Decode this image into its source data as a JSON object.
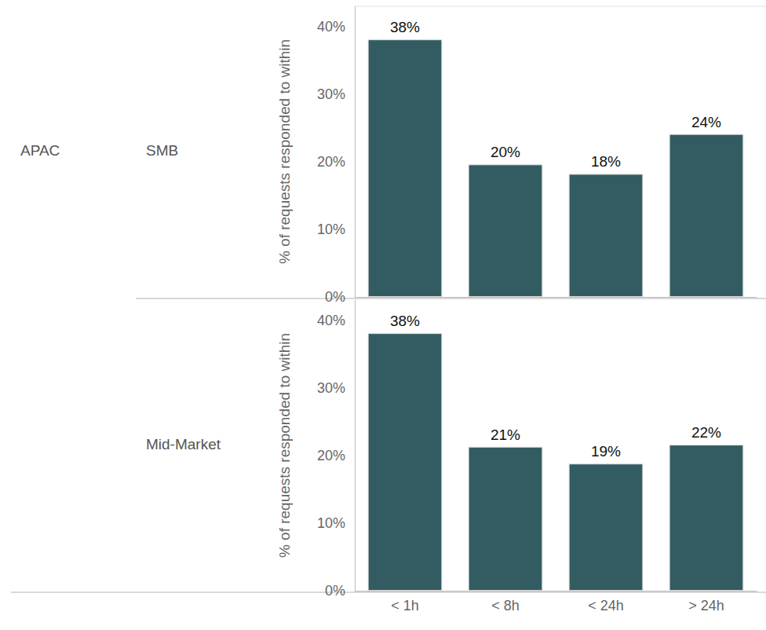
{
  "chart_data": [
    {
      "type": "bar",
      "title": "SMB",
      "annotations": [
        "APAC"
      ],
      "ylabel": "% of requests responded to within",
      "categories": [
        "< 1h",
        "< 8h",
        "< 24h",
        "> 24h"
      ],
      "values": [
        38.1,
        19.6,
        18.2,
        24.1
      ],
      "value_labels": [
        "38%",
        "20%",
        "18%",
        "24%"
      ],
      "color": "#335c62",
      "ylim": [
        0,
        43
      ],
      "yticks": [
        {
          "value": 0,
          "label": "0%"
        },
        {
          "value": 10,
          "label": "10%"
        },
        {
          "value": 20,
          "label": "20%"
        },
        {
          "value": 30,
          "label": "30%"
        },
        {
          "value": 40,
          "label": "40%"
        }
      ],
      "grid": false,
      "data_labels": true,
      "tick_labels": "y"
    },
    {
      "type": "bar",
      "title": "Mid-Market",
      "ylabel": "% of requests responded to within",
      "categories": [
        "< 1h",
        "< 8h",
        "< 24h",
        "> 24h"
      ],
      "values": [
        38.1,
        21.3,
        18.8,
        21.6
      ],
      "value_labels": [
        "38%",
        "21%",
        "19%",
        "22%"
      ],
      "color": "#335c62",
      "ylim": [
        0,
        43
      ],
      "yticks": [
        {
          "value": 0,
          "label": "0%"
        },
        {
          "value": 10,
          "label": "10%"
        },
        {
          "value": 20,
          "label": "20%"
        },
        {
          "value": 30,
          "label": "30%"
        },
        {
          "value": 40,
          "label": "40%"
        }
      ],
      "grid": false,
      "data_labels": true
    }
  ]
}
